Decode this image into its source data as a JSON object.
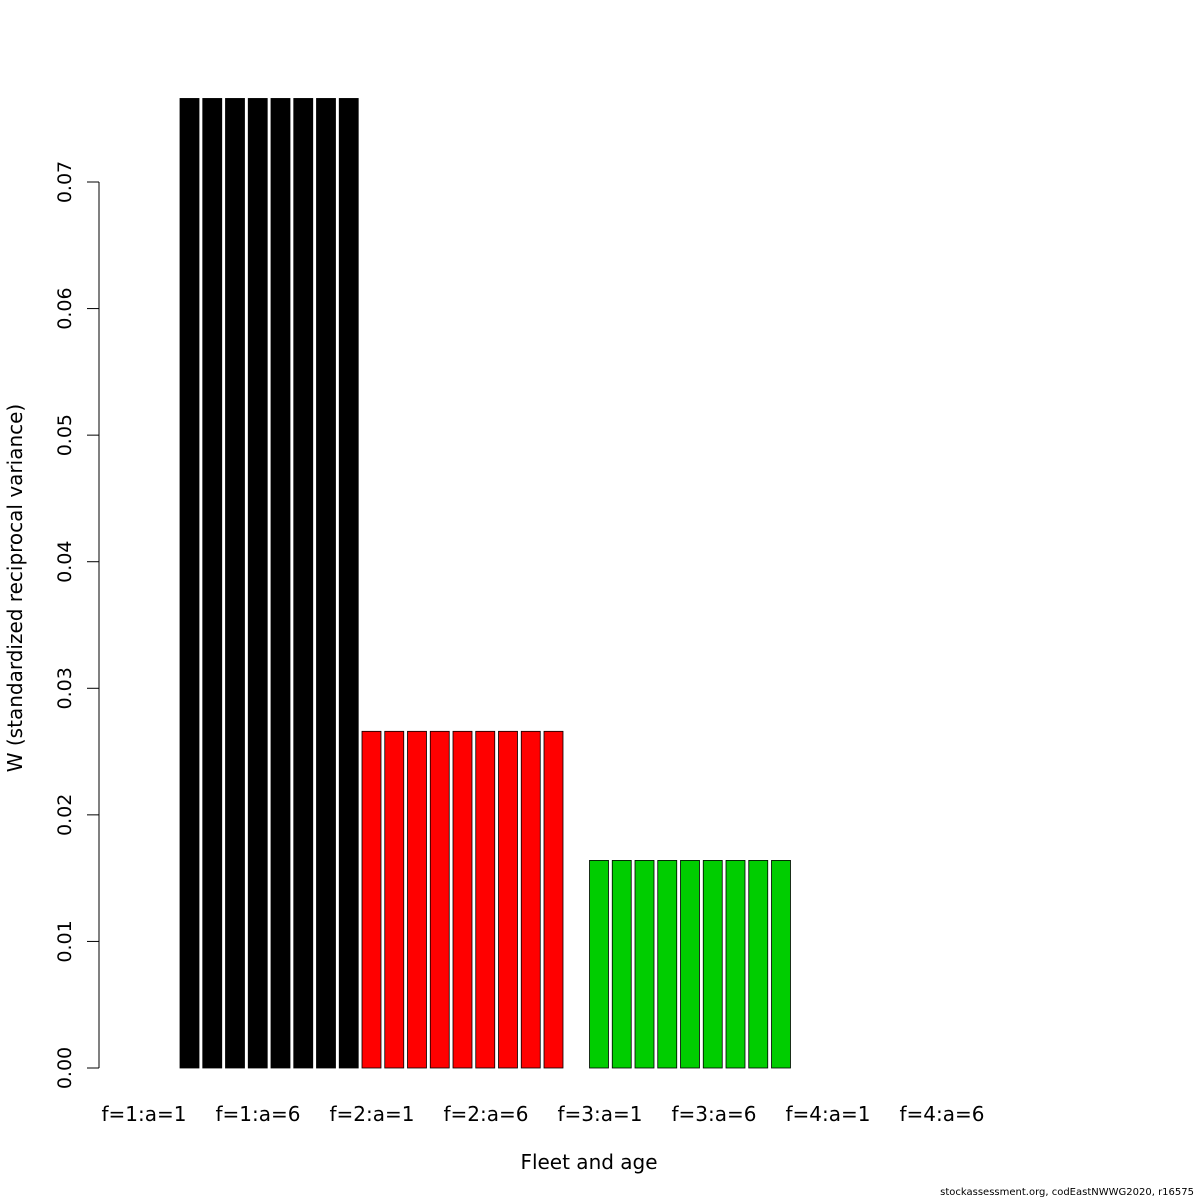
{
  "chart_data": {
    "type": "bar",
    "title": "",
    "xlabel": "Fleet and age",
    "ylabel": "W (standardized reciprocal variance)",
    "ylim": [
      0,
      0.07
    ],
    "yticks": [
      "0.00",
      "0.01",
      "0.02",
      "0.03",
      "0.04",
      "0.05",
      "0.06",
      "0.07"
    ],
    "ytick_values": [
      0,
      0.01,
      0.02,
      0.03,
      0.04,
      0.05,
      0.06,
      0.07
    ],
    "x_tick_labels": [
      "f=1:a=1",
      "f=1:a=6",
      "f=2:a=1",
      "f=2:a=6",
      "f=3:a=1",
      "f=3:a=6",
      "f=4:a=1",
      "f=4:a=6"
    ],
    "grid": false,
    "series": [
      {
        "fleet": 1,
        "color": "#000000",
        "values": [
          0.0766,
          0.0766,
          0.0766,
          0.0766,
          0.0766,
          0.0766,
          0.0766,
          0.0766
        ]
      },
      {
        "fleet": 2,
        "color": "#ff0000",
        "values": [
          0.0266,
          0.0266,
          0.0266,
          0.0266,
          0.0266,
          0.0266,
          0.0266,
          0.0266,
          0.0266
        ]
      },
      {
        "fleet": 3,
        "color": "#00cd00",
        "values": [
          0,
          0.0164,
          0.0164,
          0.0164,
          0.0164,
          0.0164,
          0.0164,
          0.0164,
          0.0164,
          0.0164
        ]
      },
      {
        "fleet": 4,
        "color": "#0000ff",
        "values": [
          0,
          0,
          0,
          0,
          0,
          0,
          0,
          0,
          0,
          0,
          0,
          0,
          0,
          0,
          0,
          0,
          0,
          0
        ]
      }
    ]
  },
  "footer": "stockassessment.org, codEastNWWG2020, r16575"
}
